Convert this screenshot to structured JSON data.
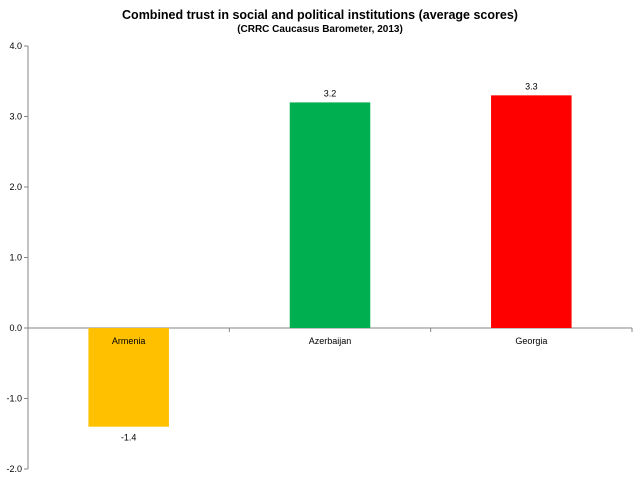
{
  "chart_data": {
    "type": "bar",
    "title": "Combined trust in social and political institutions (average scores)",
    "subtitle": "(CRRC Caucasus Barometer, 2013)",
    "categories": [
      "Armenia",
      "Azerbaijan",
      "Georgia"
    ],
    "values": [
      -1.4,
      3.2,
      3.3
    ],
    "value_labels": [
      "-1.4",
      "3.2",
      "3.3"
    ],
    "bar_colors": [
      "#FFC000",
      "#00B050",
      "#FF0000"
    ],
    "ylim": [
      -2.0,
      4.0
    ],
    "yticks": [
      -2.0,
      -1.0,
      0.0,
      1.0,
      2.0,
      3.0,
      4.0
    ],
    "ytick_labels": [
      "-2.0",
      "-1.0",
      "0.0",
      "1.0",
      "2.0",
      "3.0",
      "4.0"
    ],
    "xlabel": "",
    "ylabel": "",
    "grid": false,
    "legend": "none"
  }
}
